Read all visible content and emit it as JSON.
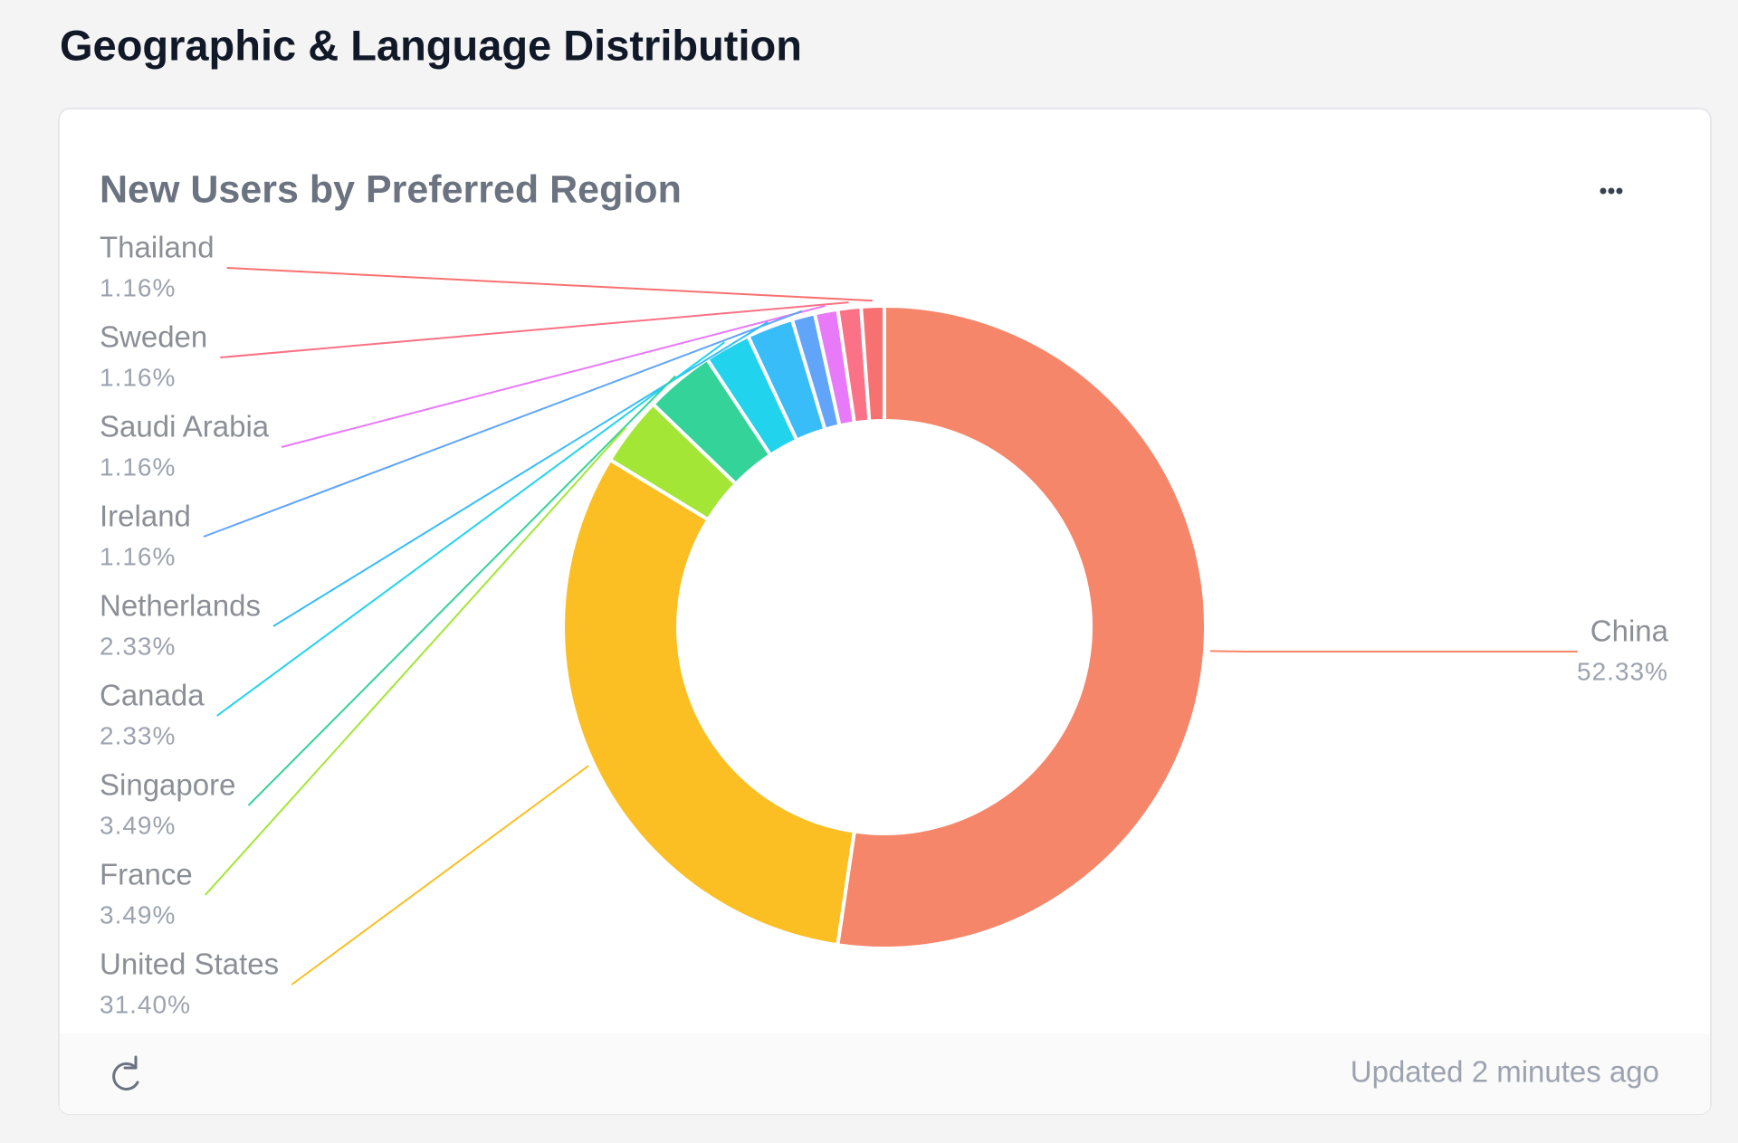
{
  "header": {
    "title": "Geographic & Language Distribution"
  },
  "card": {
    "footer": "Updated 2 minutes ago"
  },
  "chart_data": {
    "type": "pie",
    "donut": true,
    "title": "New Users by Preferred Region",
    "categories": [
      "China",
      "United States",
      "France",
      "Singapore",
      "Canada",
      "Netherlands",
      "Ireland",
      "Saudi Arabia",
      "Sweden",
      "Thailand"
    ],
    "values": [
      52.33,
      31.4,
      3.49,
      3.49,
      2.33,
      2.33,
      1.16,
      1.16,
      1.16,
      1.16
    ],
    "value_labels": [
      "52.33%",
      "31.40%",
      "3.49%",
      "3.49%",
      "2.33%",
      "2.33%",
      "1.16%",
      "1.16%",
      "1.16%",
      "1.16%"
    ],
    "colors": [
      "#f6866a",
      "#fbbf24",
      "#a3e635",
      "#34d399",
      "#22d3ee",
      "#38bdf8",
      "#60a5fa",
      "#e879f9",
      "#fb7185",
      "#f87171"
    ]
  }
}
